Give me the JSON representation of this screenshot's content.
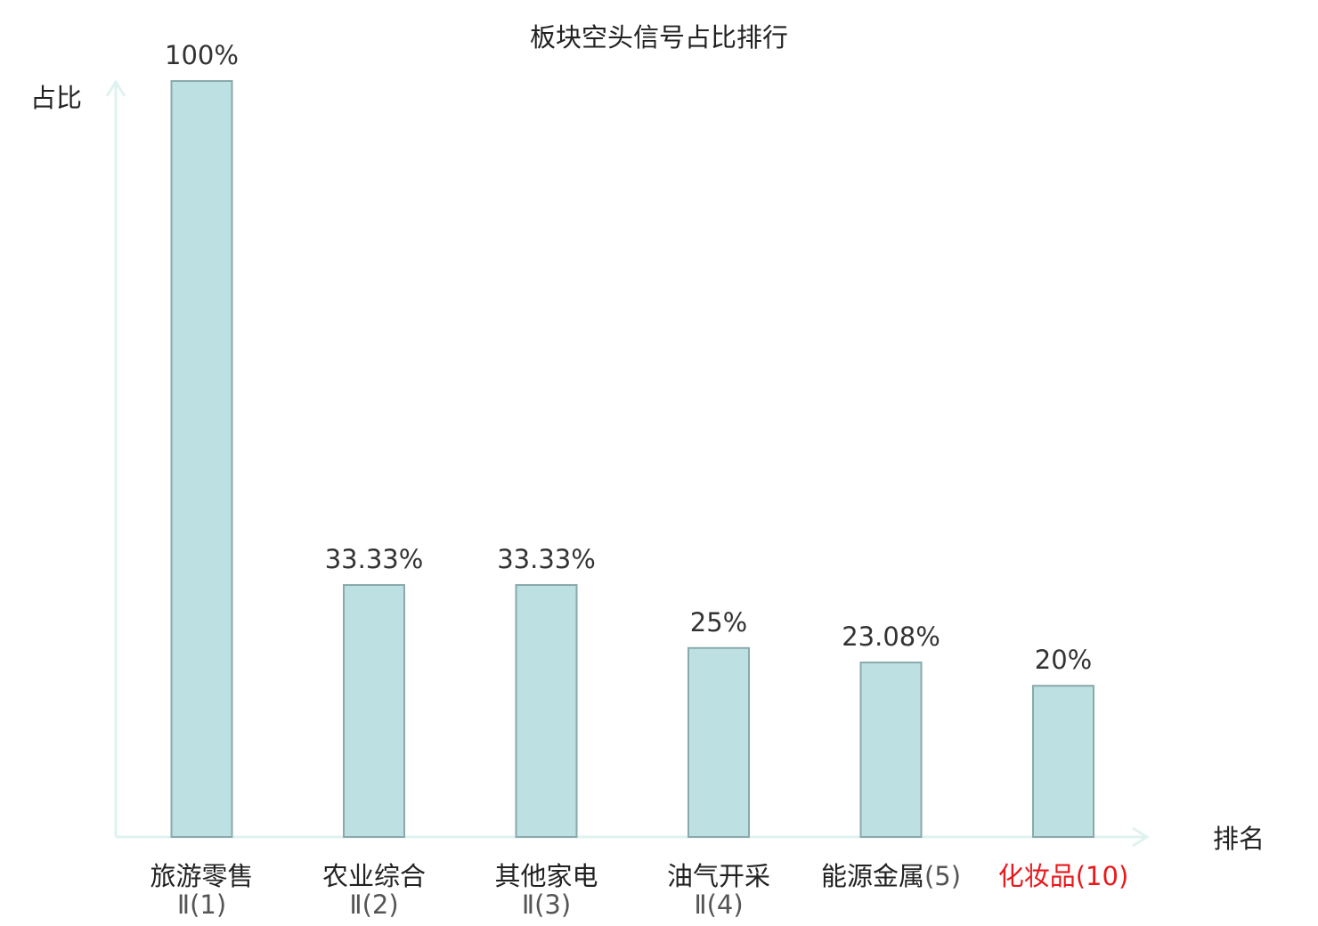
{
  "chart_data": {
    "type": "bar",
    "title": "板块空头信号占比排行",
    "ylabel": "占比",
    "xlabel": "排名",
    "ylim": [
      0,
      100
    ],
    "grid": false,
    "categories": [
      {
        "name": "旅游零售",
        "rank": "Ⅱ(1)",
        "highlight": false
      },
      {
        "name": "农业综合",
        "rank": "Ⅱ(2)",
        "highlight": false
      },
      {
        "name": "其他家电",
        "rank": "Ⅱ(3)",
        "highlight": false
      },
      {
        "name": "油气开采",
        "rank": "Ⅱ(4)",
        "highlight": false
      },
      {
        "name": "能源金属",
        "rank": "(5)",
        "highlight": false
      },
      {
        "name": "化妆品",
        "rank": "(10)",
        "highlight": true
      }
    ],
    "values": [
      100,
      33.33,
      33.33,
      25,
      23.08,
      20
    ],
    "value_labels": [
      "100%",
      "33.33%",
      "33.33%",
      "25%",
      "23.08%",
      "20%"
    ]
  },
  "colors": {
    "bar_fill": "#bde0e3",
    "bar_stroke": "#8aa9ab",
    "axis": "#dff2ef",
    "text": "#333333",
    "category_text": "#222222",
    "rank_text": "#555555",
    "highlight": "#e8191c"
  }
}
